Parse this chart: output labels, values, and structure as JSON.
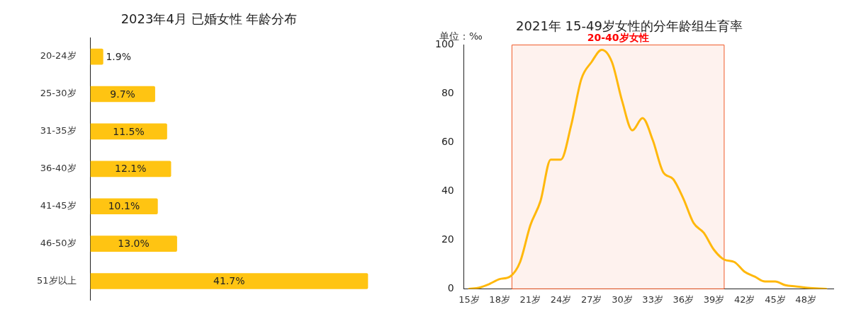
{
  "chart_data": [
    {
      "type": "bar",
      "orientation": "horizontal",
      "title": "2023年4月 已婚女性 年龄分布",
      "categories": [
        "20-24岁",
        "25-30岁",
        "31-35岁",
        "36-40岁",
        "41-45岁",
        "46-50岁",
        "51岁以上"
      ],
      "values": [
        1.9,
        9.7,
        11.5,
        12.1,
        10.1,
        13.0,
        41.7
      ],
      "value_labels": [
        "1.9%",
        "9.7%",
        "11.5%",
        "12.1%",
        "10.1%",
        "13.0%",
        "41.7%"
      ],
      "color": "#ffc412",
      "tick_labels": "y",
      "grid": false,
      "legend": false
    },
    {
      "type": "line",
      "title": "2021年 15-49岁女性的分年龄组生育率",
      "annotations": [
        "单位：‰"
      ],
      "x": [
        15,
        16,
        17,
        18,
        19,
        20,
        21,
        22,
        23,
        24,
        25,
        26,
        27,
        28,
        29,
        30,
        31,
        32,
        33,
        34,
        35,
        36,
        37,
        38,
        39,
        40,
        41,
        42,
        43,
        44,
        45,
        46,
        47,
        48,
        49,
        50
      ],
      "series": [
        {
          "color": "#ffb80c",
          "values": [
            0,
            0.5,
            2,
            4,
            5,
            11,
            26,
            36,
            53,
            53,
            67,
            86,
            93,
            98,
            93,
            77,
            65,
            70,
            61,
            48,
            45,
            37,
            27,
            23,
            16,
            12,
            11,
            7,
            5,
            3,
            3,
            1.5,
            1,
            0.5,
            0.2,
            0
          ]
        }
      ],
      "xlim": [
        14.5,
        50.7
      ],
      "xticks": [
        {
          "value": 15,
          "label": "15岁"
        },
        {
          "value": 18,
          "label": "18岁"
        },
        {
          "value": 21,
          "label": "21岁"
        },
        {
          "value": 24,
          "label": "24岁"
        },
        {
          "value": 27,
          "label": "27岁"
        },
        {
          "value": 30,
          "label": "30岁"
        },
        {
          "value": 33,
          "label": "33岁"
        },
        {
          "value": 36,
          "label": "36岁"
        },
        {
          "value": 39,
          "label": "39岁"
        },
        {
          "value": 42,
          "label": "42岁"
        },
        {
          "value": 45,
          "label": "45岁"
        },
        {
          "value": 48,
          "label": "48岁"
        }
      ],
      "ylim": [
        0,
        100
      ],
      "yticks": [
        0,
        20,
        40,
        60,
        80,
        100
      ],
      "bands": [
        {
          "axis": "x",
          "from": 19.2,
          "to": 40,
          "label": "20-40岁女性",
          "color": "#f05a28"
        }
      ],
      "marker": "none",
      "line_style": "solid",
      "grid": false,
      "legend": false
    }
  ]
}
